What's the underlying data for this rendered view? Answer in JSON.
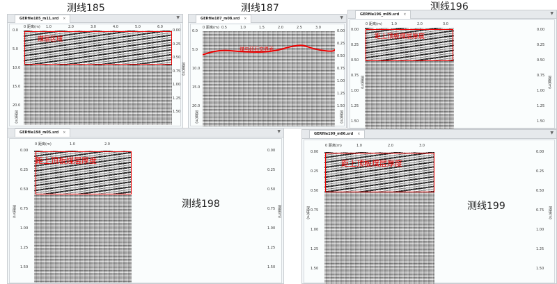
{
  "titles": {
    "p185": "测线185",
    "p187": "测线187",
    "p196": "测线196",
    "p198": "测线198",
    "p199": "测线199"
  },
  "tabs": {
    "p185": "GERfile185_m11.srd",
    "p187": "GERfile187_m08.srd",
    "p196": "GERfile196_m09.srd",
    "p198": "GERfile198_m05.srd",
    "p199": "GERfile199_m06.srd",
    "close": "×"
  },
  "axes": {
    "x_label": "距离(m)",
    "y_label": "深度(m)"
  },
  "annotations": {
    "p185": "煤层区域",
    "p187": "煤与矸石交界面",
    "thickness": "距上顶板煤层厚度"
  },
  "ticks": {
    "p185_x": [
      "0",
      "1.0",
      "2.0",
      "3.0",
      "4.0",
      "5.0",
      "6.0"
    ],
    "p185_left": [
      "0.0",
      "5.0",
      "10.0",
      "15.0",
      "20.0"
    ],
    "p185_right": [
      "0.00",
      "0.25",
      "0.50",
      "0.75",
      "1.00",
      "1.25",
      "1.50"
    ],
    "p187_x": [
      "0",
      "0.5",
      "1.0",
      "1.5",
      "2.0",
      "2.5",
      "3.0"
    ],
    "p187_left": [
      "0.0",
      "5.0",
      "10.0",
      "15.0",
      "20.0"
    ],
    "p187_right": [
      "0.00",
      "0.25",
      "0.50",
      "0.75",
      "1.00",
      "1.25",
      "1.50"
    ],
    "p196_x": [
      "0",
      "1.0",
      "2.0",
      "3.0"
    ],
    "depth": [
      "0.00",
      "0.25",
      "0.50",
      "0.75",
      "1.00",
      "1.25",
      "1.50"
    ],
    "p198_x": [
      "0",
      "1.0",
      "2.0"
    ],
    "p199_x": [
      "0",
      "1.0",
      "2.0",
      "3.0"
    ]
  },
  "colors": {
    "annotation": "#e00000"
  }
}
